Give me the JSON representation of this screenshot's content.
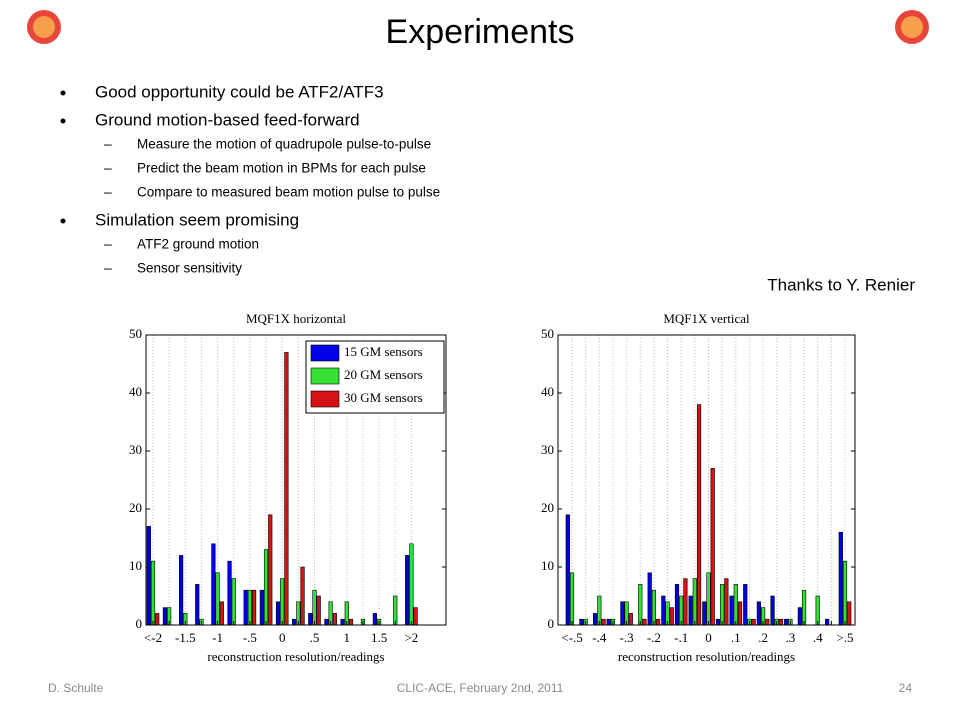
{
  "title": "Experiments",
  "bullets": [
    {
      "text": "Good opportunity could be ATF2/ATF3",
      "sub": []
    },
    {
      "text": "Ground motion-based feed-forward",
      "sub": [
        "Measure the motion of quadrupole pulse-to-pulse",
        "Predict the beam motion in BPMs for each pulse",
        "Compare to measured beam motion pulse to pulse"
      ]
    },
    {
      "text": "Simulation seem promising",
      "sub": [
        "ATF2 ground motion",
        "Sensor sensitivity"
      ]
    }
  ],
  "credit": "Thanks to Y. Renier",
  "footer": {
    "left": "D. Schulte",
    "center": "CLIC-ACE, February 2nd, 2011",
    "right": "24"
  },
  "chart_data": [
    {
      "type": "bar",
      "title": "MQF1X horizontal",
      "x_label": "reconstruction resolution/readings",
      "categories": [
        "<-2",
        null,
        "-1.5",
        null,
        "-1",
        null,
        "-.5",
        null,
        "0",
        null,
        ".5",
        null,
        "1",
        null,
        "1.5",
        null,
        ">2"
      ],
      "series": [
        {
          "name": "15 GM sensors",
          "color": "#0000e6",
          "values": [
            17,
            3,
            12,
            7,
            14,
            11,
            6,
            6,
            4,
            1,
            2,
            1,
            1,
            0,
            2,
            0,
            12
          ]
        },
        {
          "name": "20 GM sensors",
          "color": "#33e033",
          "values": [
            11,
            3,
            2,
            1,
            9,
            8,
            6,
            13,
            8,
            4,
            6,
            4,
            4,
            1,
            1,
            5,
            14
          ]
        },
        {
          "name": "30 GM sensors",
          "color": "#d41414",
          "values": [
            2,
            0,
            0,
            0,
            4,
            0,
            6,
            19,
            47,
            10,
            5,
            2,
            1,
            0,
            0,
            0,
            3
          ]
        }
      ],
      "ylim": [
        0,
        50
      ],
      "yticks": [
        0,
        10,
        20,
        30,
        40,
        50
      ],
      "grid": "x",
      "legend": "upper right"
    },
    {
      "type": "bar",
      "title": "MQF1X vertical",
      "x_label": "reconstruction resolution/readings",
      "categories": [
        "<-.5",
        null,
        "-.4",
        null,
        "-.3",
        null,
        "-.2",
        null,
        "-.1",
        null,
        "0",
        null,
        ".1",
        null,
        ".2",
        null,
        ".3",
        null,
        ".4",
        null,
        ">.5"
      ],
      "series": [
        {
          "color": "#0000e6",
          "values": [
            19,
            1,
            2,
            1,
            4,
            0,
            9,
            5,
            7,
            5,
            4,
            1,
            5,
            7,
            4,
            5,
            1,
            3,
            0,
            1,
            16
          ]
        },
        {
          "color": "#33e033",
          "values": [
            9,
            1,
            5,
            1,
            4,
            7,
            6,
            4,
            5,
            8,
            9,
            7,
            7,
            1,
            3,
            1,
            1,
            6,
            5,
            0,
            11
          ]
        },
        {
          "color": "#d41414",
          "values": [
            0,
            0,
            1,
            0,
            2,
            1,
            1,
            3,
            8,
            38,
            27,
            8,
            4,
            1,
            1,
            1,
            0,
            0,
            0,
            0,
            4
          ]
        }
      ],
      "ylim": [
        0,
        50
      ],
      "yticks": [
        0,
        10,
        20,
        30,
        40,
        50
      ],
      "grid": "x"
    }
  ]
}
